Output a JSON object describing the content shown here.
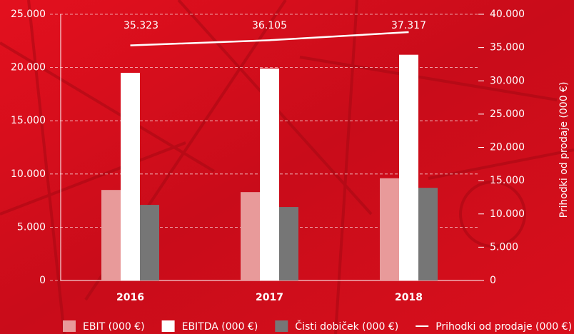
{
  "chart_data": {
    "type": "bar-line",
    "categories": [
      "2016",
      "2017",
      "2018"
    ],
    "series": [
      {
        "name": "EBIT (000 €)",
        "type": "bar",
        "color": "#e89a9a",
        "values": [
          8500,
          8300,
          9600
        ]
      },
      {
        "name": "EBITDA (000 €)",
        "type": "bar",
        "color": "#ffffff",
        "values": [
          19500,
          19900,
          21200
        ]
      },
      {
        "name": "Čisti dobiček (000 €)",
        "type": "bar",
        "color": "#767676",
        "values": [
          7100,
          6900,
          8700
        ]
      },
      {
        "name": "Prihodki od prodaje (000 €)",
        "type": "line",
        "axis": "y2",
        "color": "#ffffff",
        "values": [
          35323,
          36105,
          37317
        ],
        "value_labels": [
          "35.323",
          "36.105",
          "37.317"
        ]
      }
    ],
    "ylim": [
      0,
      25000
    ],
    "yticks": [
      {
        "value": 0,
        "label": "0"
      },
      {
        "value": 5000,
        "label": "5.000"
      },
      {
        "value": 10000,
        "label": "10.000"
      },
      {
        "value": 15000,
        "label": "15.000"
      },
      {
        "value": 20000,
        "label": "20.000"
      },
      {
        "value": 25000,
        "label": "25.000"
      }
    ],
    "y2lim": [
      0,
      40000
    ],
    "y2ticks": [
      {
        "value": 0,
        "label": "0"
      },
      {
        "value": 5000,
        "label": "5.000"
      },
      {
        "value": 10000,
        "label": "10.000"
      },
      {
        "value": 15000,
        "label": "15.000"
      },
      {
        "value": 20000,
        "label": "20.000"
      },
      {
        "value": 25000,
        "label": "25.000"
      },
      {
        "value": 30000,
        "label": "30.000"
      },
      {
        "value": 35000,
        "label": "35.000"
      },
      {
        "value": 40000,
        "label": "40.000"
      }
    ],
    "y2label": "Prihodki od prodaje (000 €)",
    "grid": true
  }
}
